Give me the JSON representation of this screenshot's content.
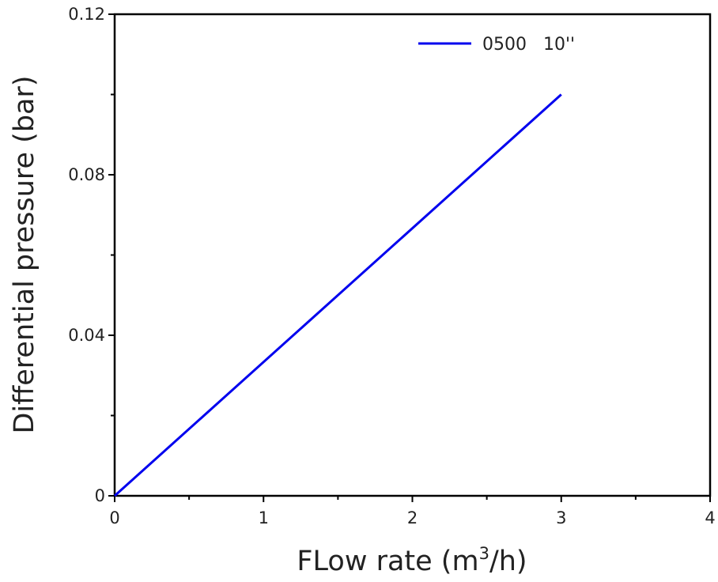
{
  "chart_data": {
    "type": "line",
    "xlabel": "FLow rate (m",
    "xlabel_sup": "3",
    "xlabel_tail": "/h)",
    "ylabel": "Differential pressure (bar)",
    "xlim": [
      0,
      4
    ],
    "ylim": [
      0,
      0.12
    ],
    "x_ticks": [
      0,
      1,
      2,
      3,
      4
    ],
    "x_tick_labels": [
      "0",
      "1",
      "2",
      "3",
      "4"
    ],
    "y_ticks": [
      0,
      0.04,
      0.08,
      0.12
    ],
    "y_tick_labels": [
      "0",
      "0.04",
      "0.08",
      "0.12"
    ],
    "grid": false,
    "legend_position": "top-right",
    "series": [
      {
        "name": "0500   10''",
        "color": "#0000ee",
        "x": [
          0,
          3
        ],
        "y": [
          0,
          0.1
        ]
      }
    ]
  }
}
